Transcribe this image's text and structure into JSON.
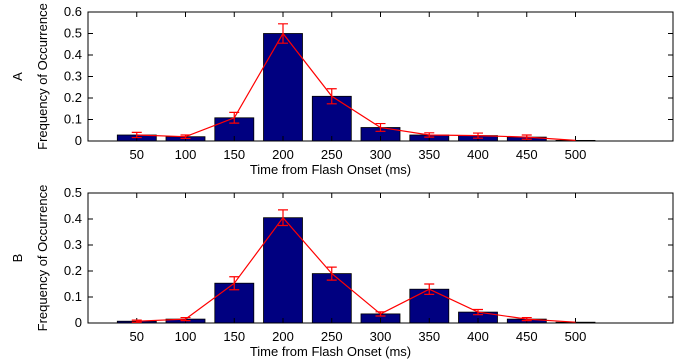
{
  "chart_data": [
    {
      "type": "bar",
      "panel_label": "A",
      "categories": [
        "50",
        "100",
        "150",
        "200",
        "250",
        "300",
        "350",
        "400",
        "450",
        "500"
      ],
      "x": [
        50,
        100,
        150,
        200,
        250,
        300,
        350,
        400,
        450,
        500
      ],
      "xlim": [
        0,
        600
      ],
      "ylim": [
        0,
        0.6
      ],
      "yticks": [
        "0",
        "0.1",
        "0.2",
        "0.3",
        "0.4",
        "0.5",
        "0.6"
      ],
      "xlabel": "Time from Flash Onset (ms)",
      "ylabel": "Frequency of Occurrence",
      "series": [
        {
          "type": "bar",
          "values": [
            0.028,
            0.02,
            0.108,
            0.5,
            0.208,
            0.063,
            0.028,
            0.025,
            0.018,
            0.003
          ]
        },
        {
          "type": "line-errorbar",
          "values": [
            0.028,
            0.02,
            0.108,
            0.5,
            0.208,
            0.063,
            0.028,
            0.025,
            0.018,
            0.003
          ],
          "errors": [
            0.012,
            0.008,
            0.025,
            0.045,
            0.035,
            0.018,
            0.01,
            0.012,
            0.01,
            0.0
          ]
        }
      ],
      "colors": {
        "bar": "#000080",
        "line": "#ff0000"
      }
    },
    {
      "type": "bar",
      "panel_label": "B",
      "categories": [
        "50",
        "100",
        "150",
        "200",
        "250",
        "300",
        "350",
        "400",
        "450",
        "500"
      ],
      "x": [
        50,
        100,
        150,
        200,
        250,
        300,
        350,
        400,
        450,
        500
      ],
      "xlim": [
        0,
        600
      ],
      "ylim": [
        0,
        0.5
      ],
      "yticks": [
        "0",
        "0.1",
        "0.2",
        "0.3",
        "0.4",
        "0.5"
      ],
      "xlabel": "Time from Flash Onset (ms)",
      "ylabel": "Frequency of Occurrence",
      "series": [
        {
          "type": "bar",
          "values": [
            0.007,
            0.015,
            0.153,
            0.405,
            0.19,
            0.035,
            0.13,
            0.042,
            0.015,
            0.003
          ]
        },
        {
          "type": "line-errorbar",
          "values": [
            0.007,
            0.015,
            0.153,
            0.405,
            0.19,
            0.035,
            0.13,
            0.042,
            0.015,
            0.003
          ],
          "errors": [
            0.004,
            0.006,
            0.025,
            0.03,
            0.025,
            0.008,
            0.02,
            0.01,
            0.006,
            0.0
          ]
        }
      ],
      "colors": {
        "bar": "#000080",
        "line": "#ff0000"
      }
    }
  ]
}
